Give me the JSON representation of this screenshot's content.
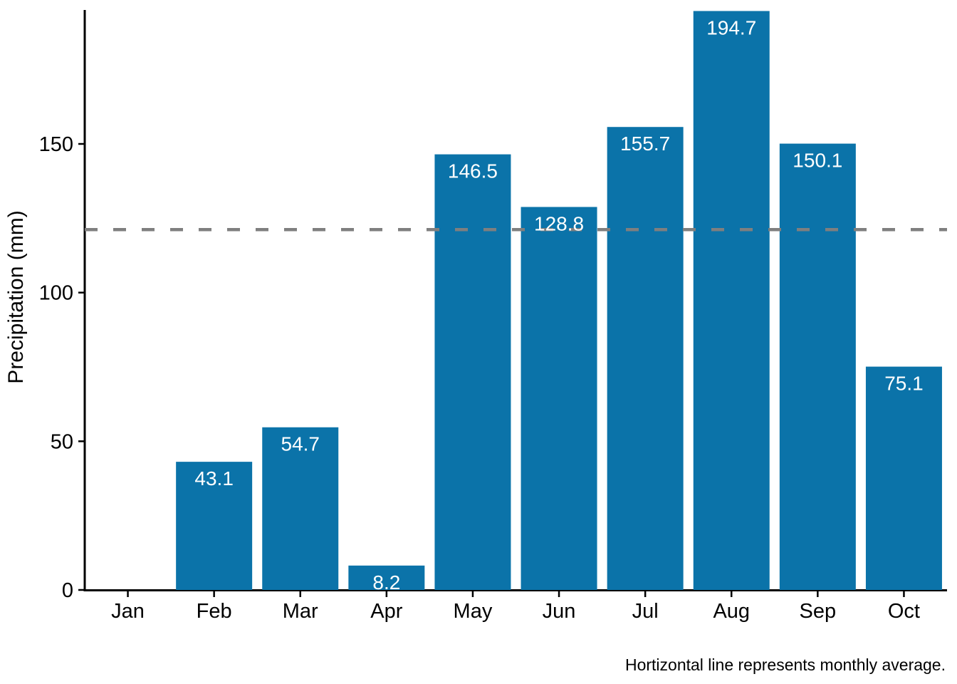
{
  "figure": {
    "caption": "Hortizontal line represents monthly average."
  },
  "chart_data": {
    "type": "bar",
    "title": "",
    "xlabel": "",
    "ylabel": "Precipitation (mm)",
    "categories": [
      "Jan",
      "Feb",
      "Mar",
      "Apr",
      "May",
      "Jun",
      "Jul",
      "Aug",
      "Sep",
      "Oct"
    ],
    "values": [
      0,
      43.1,
      54.7,
      8.2,
      146.5,
      128.8,
      155.7,
      194.7,
      150.1,
      75.1
    ],
    "bar_labels": [
      "",
      "43.1",
      "54.7",
      "8.2",
      "146.5",
      "128.8",
      "155.7",
      "194.7",
      "150.1",
      "75.1"
    ],
    "yticks": [
      0,
      50,
      100,
      150
    ],
    "ytick_labels": [
      "0",
      "50",
      "100",
      "150"
    ],
    "ylim": [
      0,
      195
    ],
    "grid": false,
    "legend": false,
    "reference_line": {
      "style": "dashed-horizontal",
      "value": 121.2
    },
    "colors": {
      "bar": "#0B73A9",
      "bar_label": "#FFFFFF",
      "reference_line": "#7F7F7F",
      "axis": "#000000",
      "text": "#000000",
      "background": "#FFFFFF"
    }
  }
}
